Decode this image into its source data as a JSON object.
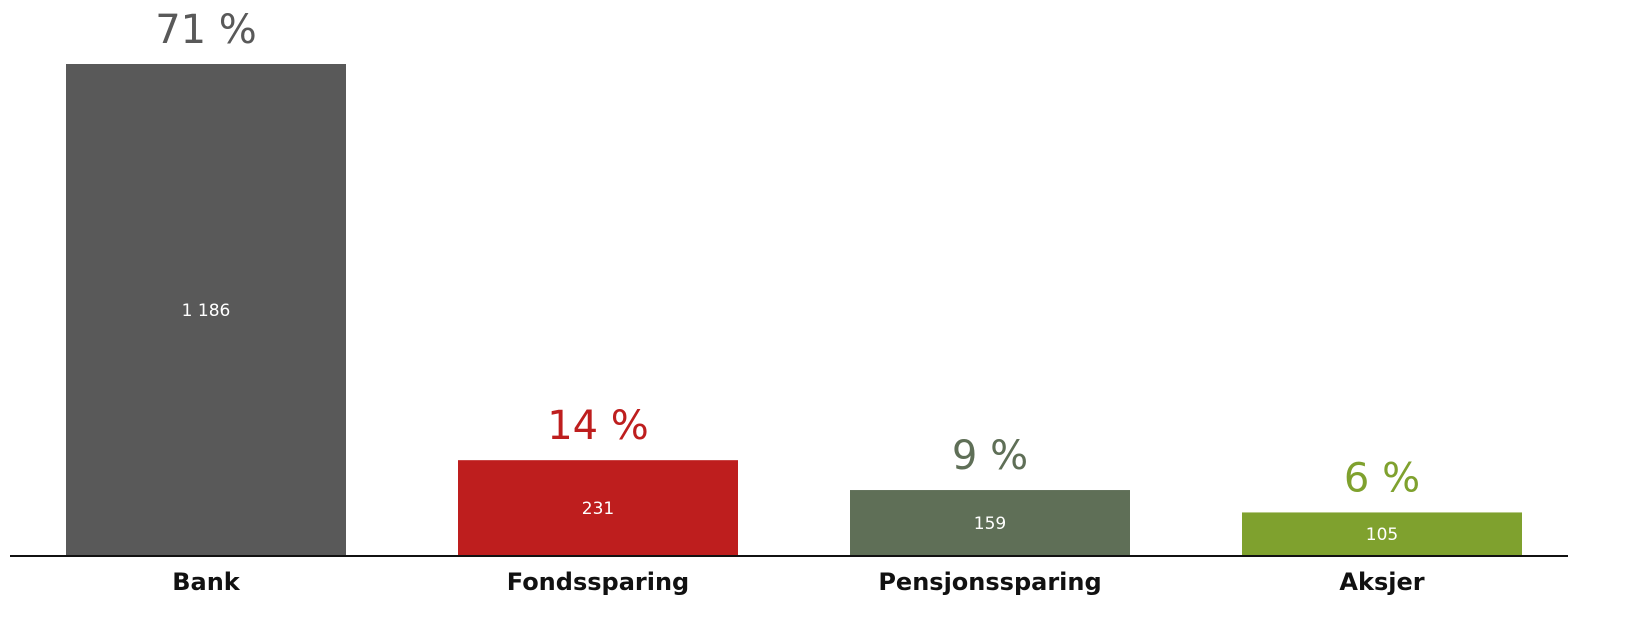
{
  "chart_data": {
    "type": "bar",
    "categories": [
      "Bank",
      "Fondssparing",
      "Pensjonssparing",
      "Aksjer"
    ],
    "values": [
      1186,
      231,
      159,
      105
    ],
    "value_labels": [
      "1 186",
      "231",
      "159",
      "105"
    ],
    "shares": [
      71,
      14,
      9,
      6
    ],
    "share_labels": [
      "71 %",
      "14 %",
      "9 %",
      "6 %"
    ],
    "colors": [
      "#595959",
      "#be1e1e",
      "#5f6f57",
      "#7fa12e"
    ]
  }
}
